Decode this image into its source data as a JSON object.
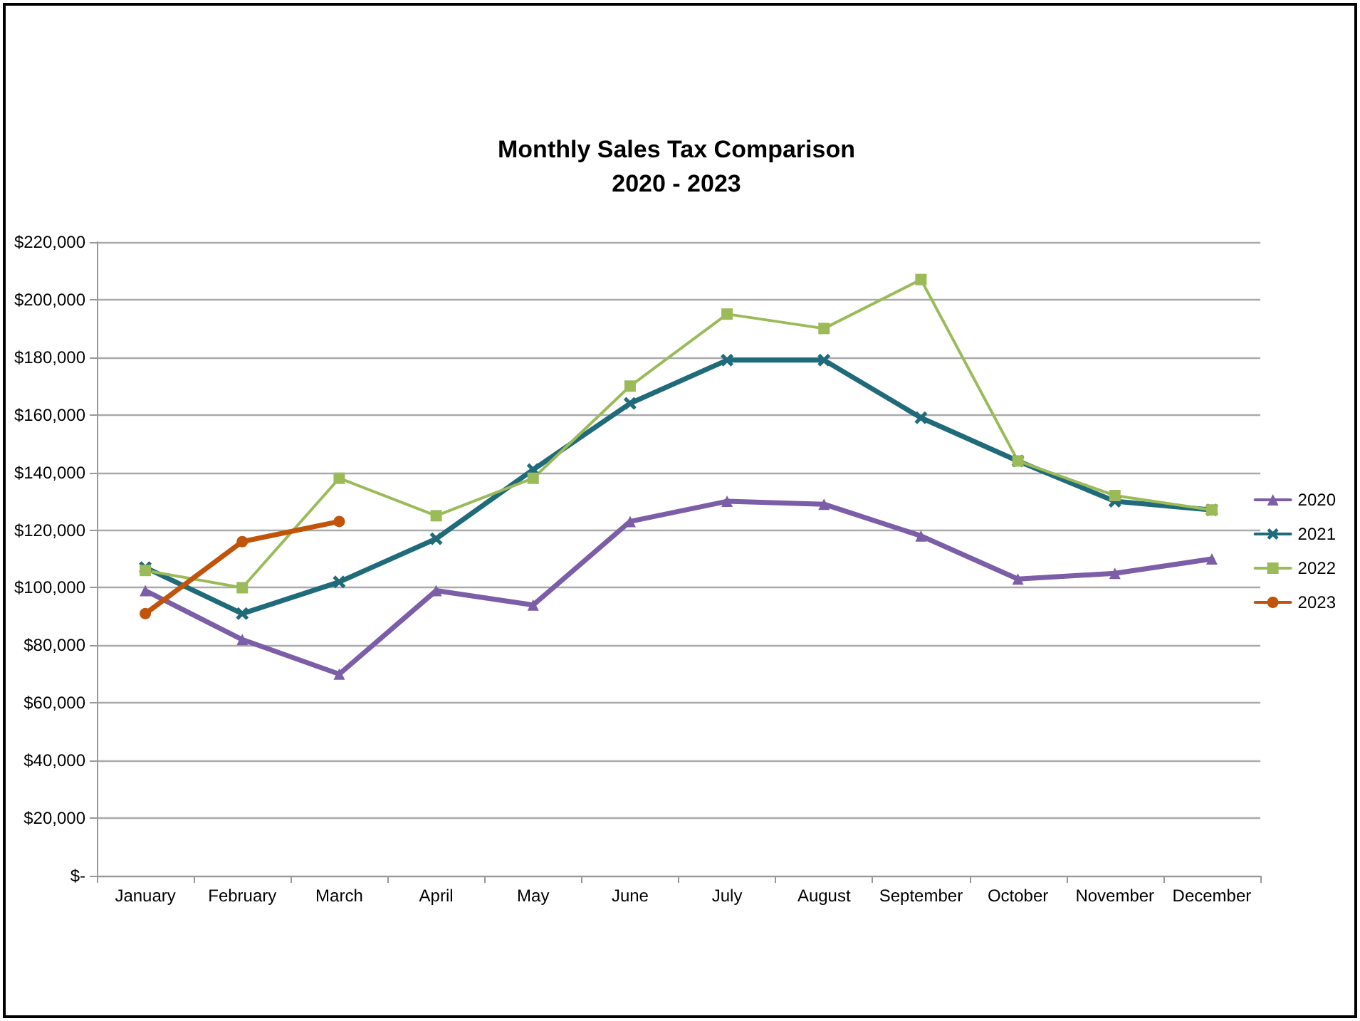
{
  "chart_data": {
    "type": "line",
    "title": "Monthly Sales Tax Comparison\n2020 - 2023",
    "categories": [
      "January",
      "February",
      "March",
      "April",
      "May",
      "June",
      "July",
      "August",
      "September",
      "October",
      "November",
      "December"
    ],
    "series": [
      {
        "name": "2020",
        "color": "#7b5ea7",
        "marker": "triangle",
        "values": [
          99000,
          82000,
          70000,
          99000,
          94000,
          123000,
          130000,
          129000,
          118000,
          103000,
          105000,
          110000
        ]
      },
      {
        "name": "2021",
        "color": "#1f6b7a",
        "marker": "cross",
        "values": [
          107000,
          91000,
          102000,
          117000,
          141000,
          164000,
          179000,
          179000,
          159000,
          144000,
          130000,
          127000
        ]
      },
      {
        "name": "2022",
        "color": "#9bbb59",
        "marker": "square",
        "values": [
          106000,
          100000,
          138000,
          125000,
          138000,
          170000,
          195000,
          190000,
          207000,
          144000,
          132000,
          127000
        ]
      },
      {
        "name": "2023",
        "color": "#c0540a",
        "marker": "circle",
        "values": [
          91000,
          116000,
          123000,
          null,
          null,
          null,
          null,
          null,
          null,
          null,
          null,
          null
        ]
      }
    ],
    "ylim": [
      0,
      220000
    ],
    "yticks": [
      {
        "value": 0,
        "label": "$-"
      },
      {
        "value": 20000,
        "label": "$20,000"
      },
      {
        "value": 40000,
        "label": "$40,000"
      },
      {
        "value": 60000,
        "label": "$60,000"
      },
      {
        "value": 80000,
        "label": "$80,000"
      },
      {
        "value": 100000,
        "label": "$100,000"
      },
      {
        "value": 120000,
        "label": "$120,000"
      },
      {
        "value": 140000,
        "label": "$140,000"
      },
      {
        "value": 160000,
        "label": "$160,000"
      },
      {
        "value": 180000,
        "label": "$180,000"
      },
      {
        "value": 200000,
        "label": "$200,000"
      },
      {
        "value": 220000,
        "label": "$220,000"
      }
    ],
    "grid": "y",
    "legend": "right",
    "line_style": "solid"
  }
}
